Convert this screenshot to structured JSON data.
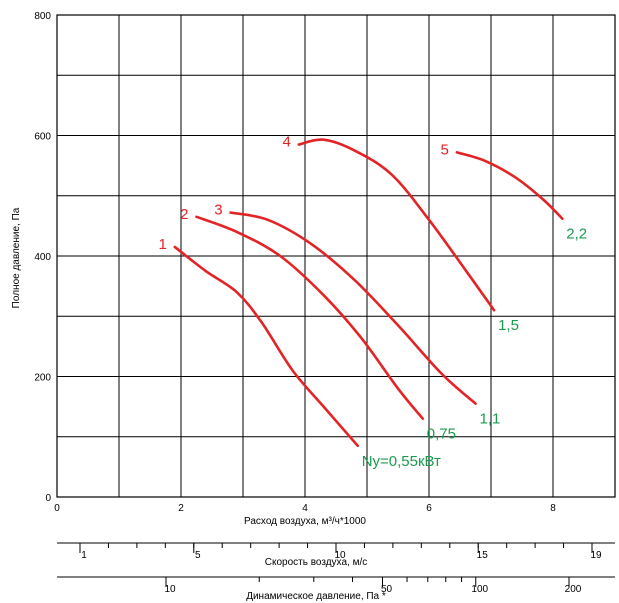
{
  "chart_data": {
    "type": "line",
    "xlabel": "Расход воздуха, м³/ч*1000",
    "ylabel": "Полное давление, Па",
    "xlim": [
      0,
      9
    ],
    "ylim": [
      0,
      800
    ],
    "x_ticks": [
      "0",
      "2",
      "4",
      "6",
      "8"
    ],
    "x_tick_values": [
      0,
      2,
      4,
      6,
      8
    ],
    "y_ticks": [
      "0",
      "200",
      "400",
      "600",
      "800"
    ],
    "y_tick_values": [
      0,
      200,
      400,
      600,
      800
    ],
    "grid": true,
    "curve_color": "#e32426",
    "label_color": "#1a9b4f",
    "series": [
      {
        "name": "1",
        "power_label": "Ny=0,55кВт",
        "points": [
          [
            1.9,
            415
          ],
          [
            2.4,
            375
          ],
          [
            2.9,
            340
          ],
          [
            3.3,
            290
          ],
          [
            3.8,
            210
          ],
          [
            4.3,
            150
          ],
          [
            4.85,
            85
          ]
        ]
      },
      {
        "name": "2",
        "power_label": "0,75",
        "points": [
          [
            2.25,
            465
          ],
          [
            2.9,
            440
          ],
          [
            3.6,
            400
          ],
          [
            4.3,
            335
          ],
          [
            4.9,
            265
          ],
          [
            5.5,
            180
          ],
          [
            5.9,
            130
          ]
        ]
      },
      {
        "name": "3",
        "power_label": "1,1",
        "points": [
          [
            2.8,
            472
          ],
          [
            3.4,
            460
          ],
          [
            4.1,
            420
          ],
          [
            4.8,
            360
          ],
          [
            5.5,
            285
          ],
          [
            6.2,
            205
          ],
          [
            6.75,
            155
          ]
        ]
      },
      {
        "name": "4",
        "power_label": "1,5",
        "points": [
          [
            3.9,
            585
          ],
          [
            4.3,
            593
          ],
          [
            4.8,
            575
          ],
          [
            5.4,
            535
          ],
          [
            6.0,
            460
          ],
          [
            6.6,
            375
          ],
          [
            7.05,
            310
          ]
        ]
      },
      {
        "name": "5",
        "power_label": "2,2",
        "points": [
          [
            6.45,
            572
          ],
          [
            6.9,
            558
          ],
          [
            7.4,
            530
          ],
          [
            7.85,
            493
          ],
          [
            8.15,
            462
          ]
        ]
      }
    ],
    "secondary_axes": [
      {
        "label": "Скорость воздуха, м/с",
        "ticks": [
          {
            "label": "1",
            "value": 1
          },
          {
            "label": "5",
            "value": 5
          },
          {
            "label": "10",
            "value": 10
          },
          {
            "label": "15",
            "value": 15
          },
          {
            "label": "19",
            "value": 19
          }
        ]
      },
      {
        "label": "Динамическое давление, Па *",
        "ticks": [
          {
            "label": "10",
            "value": 10
          },
          {
            "label": "50",
            "value": 50
          },
          {
            "label": "100",
            "value": 100
          },
          {
            "label": "200",
            "value": 200
          }
        ]
      }
    ]
  }
}
